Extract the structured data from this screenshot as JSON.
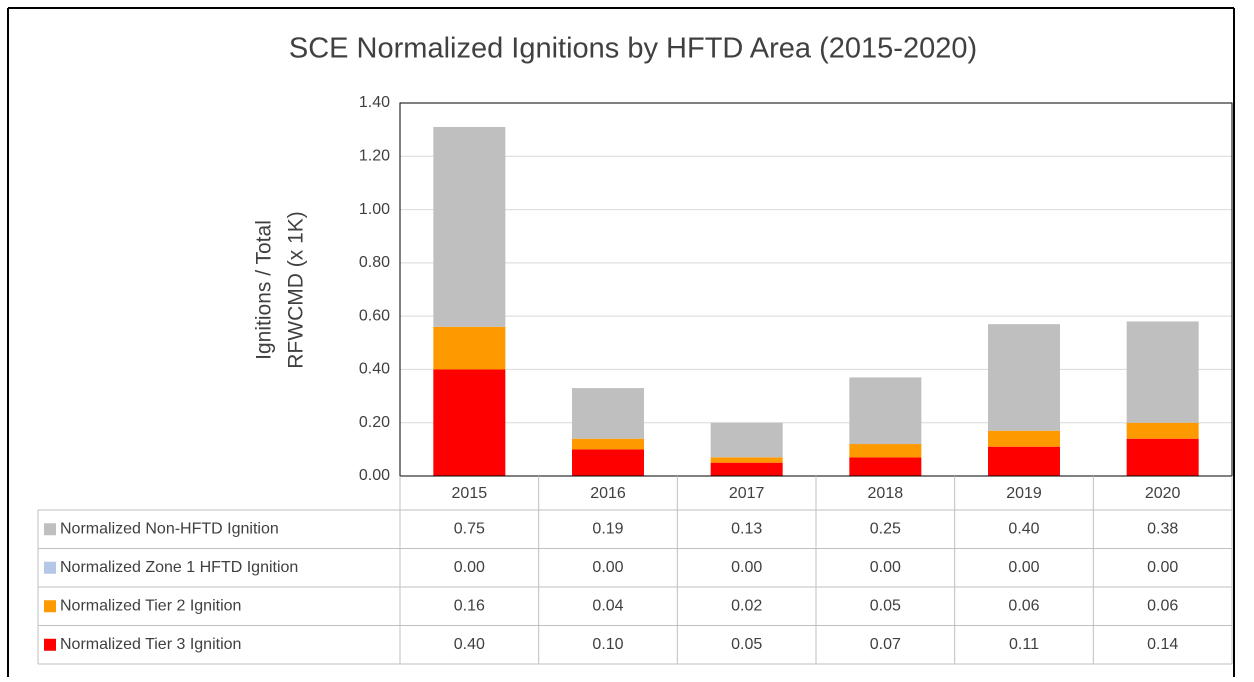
{
  "chart_data": {
    "type": "stacked_bar",
    "title": "SCE Normalized Ignitions by HFTD Area (2015-2020)",
    "ylabel": [
      "Ignitions / Total",
      "RFWCMD (x 1K)"
    ],
    "categories": [
      "2015",
      "2016",
      "2017",
      "2018",
      "2019",
      "2020"
    ],
    "series": [
      {
        "name": "Normalized Non-HFTD Ignition",
        "color": "#bfbfbf",
        "values": [
          0.75,
          0.19,
          0.13,
          0.25,
          0.4,
          0.38
        ],
        "value_labels": [
          "0.75",
          "0.19",
          "0.13",
          "0.25",
          "0.40",
          "0.38"
        ]
      },
      {
        "name": "Normalized Zone 1 HFTD Ignition",
        "color": "#b4c7e7",
        "values": [
          0,
          0,
          0,
          0,
          0,
          0
        ],
        "value_labels": [
          "0.00",
          "0.00",
          "0.00",
          "0.00",
          "0.00",
          "0.00"
        ]
      },
      {
        "name": "Normalized Tier 2 Ignition",
        "color": "#ff9900",
        "values": [
          0.16,
          0.04,
          0.02,
          0.05,
          0.06,
          0.06
        ],
        "value_labels": [
          "0.16",
          "0.04",
          "0.02",
          "0.05",
          "0.06",
          "0.06"
        ]
      },
      {
        "name": "Normalized Tier 3 Ignition",
        "color": "#ff0000",
        "values": [
          0.4,
          0.1,
          0.05,
          0.07,
          0.11,
          0.14
        ],
        "value_labels": [
          "0.40",
          "0.10",
          "0.05",
          "0.07",
          "0.11",
          "0.14"
        ]
      }
    ],
    "ylim": [
      0,
      1.4
    ],
    "yticks": [
      {
        "value": 0,
        "label": "0.00"
      },
      {
        "value": 0.2,
        "label": "0.20"
      },
      {
        "value": 0.4,
        "label": "0.40"
      },
      {
        "value": 0.6,
        "label": "0.60"
      },
      {
        "value": 0.8,
        "label": "0.80"
      },
      {
        "value": 1.0,
        "label": "1.00"
      },
      {
        "value": 1.2,
        "label": "1.20"
      },
      {
        "value": 1.4,
        "label": "1.40"
      }
    ],
    "grid": true
  }
}
